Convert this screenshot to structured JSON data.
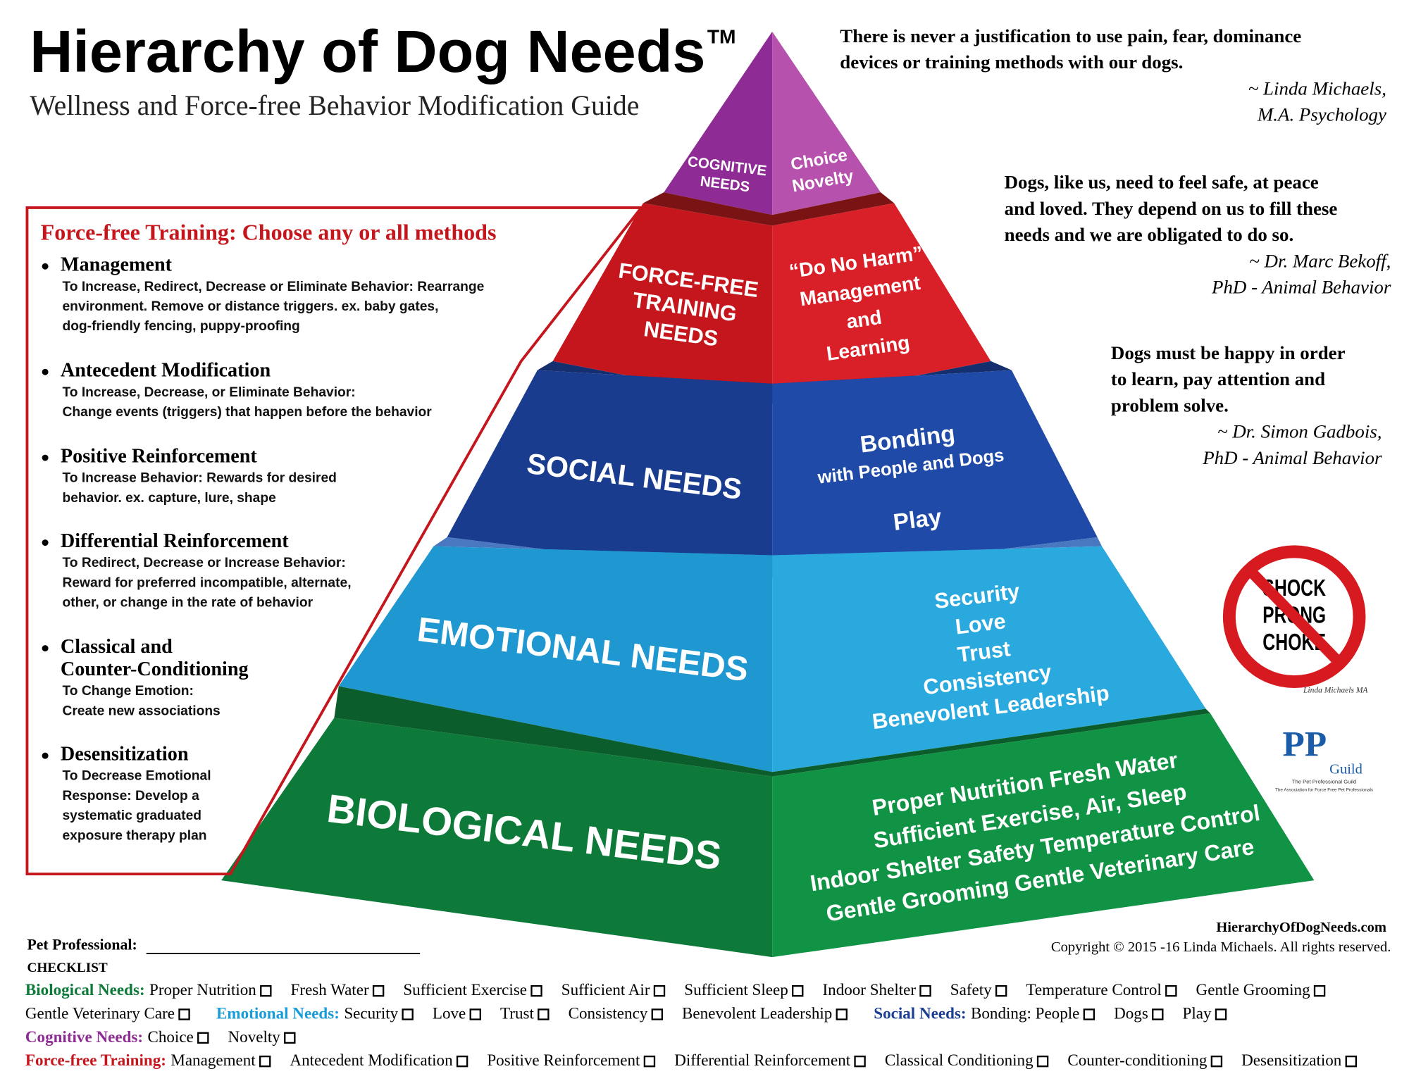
{
  "header": {
    "title": "Hierarchy of Dog Needs",
    "trademark": "TM",
    "subtitle": "Wellness and Force-free Behavior Modification Guide"
  },
  "quotes": [
    {
      "lines": [
        "There is never a justification to use pain, fear, dominance",
        "devices or training methods with our dogs."
      ],
      "attribution": [
        "~ Linda Michaels,",
        "M.A. Psychology"
      ]
    },
    {
      "lines": [
        "Dogs, like us, need to feel safe, at peace",
        "and loved. They depend on us to fill these",
        "needs and we are obligated to do so."
      ],
      "attribution": [
        "~ Dr. Marc Bekoff,",
        "PhD - Animal Behavior"
      ]
    },
    {
      "lines": [
        "Dogs must be happy in order",
        "to learn, pay attention and",
        "problem solve."
      ],
      "attribution": [
        "~ Dr. Simon Gadbois,",
        "PhD - Animal Behavior"
      ]
    }
  ],
  "pyramid": {
    "tiers": [
      {
        "left": [
          "COGNITIVE",
          "NEEDS"
        ],
        "right": [
          "Choice",
          "Novelty"
        ]
      },
      {
        "left": [
          "FORCE-FREE",
          "TRAINING",
          "NEEDS"
        ],
        "right": [
          "“Do No Harm”",
          "Management",
          "and",
          "Learning"
        ]
      },
      {
        "left": [
          "SOCIAL NEEDS"
        ],
        "right": [
          "Bonding",
          "with People and Dogs",
          "Play"
        ]
      },
      {
        "left": [
          "EMOTIONAL NEEDS"
        ],
        "right": [
          "Security",
          "Love",
          "Trust",
          "Consistency",
          "Benevolent Leadership"
        ]
      },
      {
        "left": [
          "BIOLOGICAL NEEDS"
        ],
        "right": [
          "Proper Nutrition     Fresh Water",
          "Sufficient Exercise, Air, Sleep",
          "Indoor Shelter   Safety   Temperature Control",
          "Gentle Grooming   Gentle Veterinary Care"
        ]
      }
    ]
  },
  "training": {
    "heading": "Force-free Training: Choose any or all methods",
    "methods": [
      {
        "name": [
          "Management"
        ],
        "description": [
          "To Increase, Redirect, Decrease or Eliminate Behavior: Rearrange",
          "environment. Remove or distance triggers. ex. baby gates,",
          "dog-friendly fencing, puppy-proofing"
        ]
      },
      {
        "name": [
          "Antecedent Modification"
        ],
        "description": [
          "To Increase, Decrease, or Eliminate Behavior:",
          "Change events (triggers) that happen before the behavior"
        ]
      },
      {
        "name": [
          "Positive Reinforcement"
        ],
        "description": [
          "To Increase Behavior: Rewards for desired",
          "behavior. ex. capture, lure, shape"
        ]
      },
      {
        "name": [
          "Differential Reinforcement"
        ],
        "description": [
          "To Redirect, Decrease or Increase Behavior:",
          "Reward for preferred incompatible, alternate,",
          "other, or change in the rate of behavior"
        ]
      },
      {
        "name": [
          "Classical and",
          "Counter-Conditioning"
        ],
        "description": [
          "To Change Emotion:",
          "Create new associations"
        ]
      },
      {
        "name": [
          "Desensitization"
        ],
        "description": [
          "To Decrease Emotional",
          "Response: Develop a",
          "systematic graduated",
          "exposure therapy plan"
        ]
      }
    ]
  },
  "badge": {
    "lines": [
      "SHOCK",
      "PRONG",
      "CHOKE"
    ],
    "signature": "Linda Michaels MA"
  },
  "logo": {
    "mark": "PP",
    "name": "Guild",
    "tagline": "The Pet Professional Guild",
    "subline": "The Association for Force Free Pet Professionals"
  },
  "footer": {
    "website": "HierarchyOfDogNeeds.com",
    "copyright": "Copyright © 2015 -16 Linda Michaels. All rights reserved.",
    "pet_professional": "Pet Professional:",
    "checklist_title": "CHECKLIST",
    "groups": [
      {
        "label": "Biological Needs:",
        "color": "#0d7a3a",
        "items": [
          "Proper Nutrition",
          "Fresh Water",
          "Sufficient Exercise",
          "Sufficient Air",
          "Sufficient Sleep",
          "Indoor Shelter",
          "Safety",
          "Temperature Control",
          "Gentle Grooming",
          "Gentle Veterinary Care"
        ]
      },
      {
        "label": "Emotional Needs:",
        "color": "#1a9cd8",
        "items": [
          "Security",
          "Love",
          "Trust",
          "Consistency",
          "Benevolent Leadership"
        ]
      },
      {
        "label": "Social Needs:",
        "color": "#1c3f94",
        "items": [
          "Bonding: People",
          "Dogs",
          "Play"
        ]
      },
      {
        "label": "Cognitive Needs:",
        "color": "#8e2b94",
        "items": [
          "Choice",
          "Novelty"
        ]
      },
      {
        "label": "Force-free Training:",
        "color": "#c4161c",
        "items": [
          "Management",
          "Antecedent Modification",
          "Positive Reinforcement",
          "Differential Reinforcement",
          "Classical Conditioning",
          "Counter-conditioning",
          "Desensitization"
        ]
      }
    ]
  }
}
